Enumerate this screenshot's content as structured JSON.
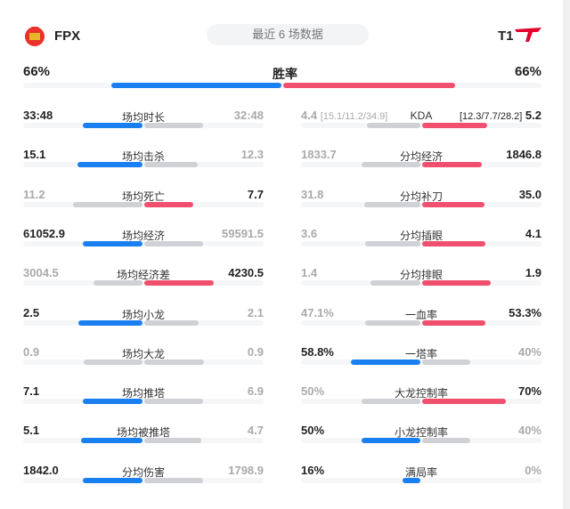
{
  "header": {
    "left_team": "FPX",
    "right_team": "T1",
    "filter": "最近 6 场数据"
  },
  "colors": {
    "left": "#1a7ff0",
    "right": "#f0506e",
    "neutral": "#d0d1d5"
  },
  "winrate": {
    "label": "胜率",
    "left": "66%",
    "right": "66%",
    "left_fraction": 0.5
  },
  "left_stats": [
    {
      "label": "场均时长",
      "left": "33:48",
      "right": "32:48",
      "lead": "left",
      "lv": 33.8,
      "rv": 32.8
    },
    {
      "label": "场均击杀",
      "left": "15.1",
      "right": "12.3",
      "lead": "left",
      "lv": 15.1,
      "rv": 12.3
    },
    {
      "label": "场均死亡",
      "left": "11.2",
      "right": "7.7",
      "lead": "right",
      "lv": 11.2,
      "rv": 7.7
    },
    {
      "label": "场均经济",
      "left": "61052.9",
      "right": "59591.5",
      "lead": "left",
      "lv": 61052.9,
      "rv": 59591.5
    },
    {
      "label": "场均经济差",
      "left": "3004.5",
      "right": "4230.5",
      "lead": "right",
      "lv": 3004.5,
      "rv": 4230.5
    },
    {
      "label": "场均小龙",
      "left": "2.5",
      "right": "2.1",
      "lead": "left",
      "lv": 2.5,
      "rv": 2.1
    },
    {
      "label": "场均大龙",
      "left": "0.9",
      "right": "0.9",
      "lead": "none",
      "lv": 0.9,
      "rv": 0.9
    },
    {
      "label": "场均推塔",
      "left": "7.1",
      "right": "6.9",
      "lead": "left",
      "lv": 7.1,
      "rv": 6.9
    },
    {
      "label": "场均被推塔",
      "left": "5.1",
      "right": "4.7",
      "lead": "left",
      "lv": 5.1,
      "rv": 4.7
    },
    {
      "label": "分均伤害",
      "left": "1842.0",
      "right": "1798.9",
      "lead": "left",
      "lv": 1842.0,
      "rv": 1798.9
    }
  ],
  "right_stats": [
    {
      "label": "KDA",
      "left": "4.4",
      "left_sub": "[15.1/11.2/34.9]",
      "right": "5.2",
      "right_sub": "[12.3/7.7/28.2]",
      "lead": "right",
      "lv": 4.4,
      "rv": 5.2
    },
    {
      "label": "分均经济",
      "left": "1833.7",
      "right": "1846.8",
      "lead": "right",
      "lv": 1833.7,
      "rv": 1846.8
    },
    {
      "label": "分均补刀",
      "left": "31.8",
      "right": "35.0",
      "lead": "right",
      "lv": 31.8,
      "rv": 35.0
    },
    {
      "label": "分均插眼",
      "left": "3.6",
      "right": "4.1",
      "lead": "right",
      "lv": 3.6,
      "rv": 4.1
    },
    {
      "label": "分均排眼",
      "left": "1.4",
      "right": "1.9",
      "lead": "right",
      "lv": 1.4,
      "rv": 1.9
    },
    {
      "label": "一血率",
      "left": "47.1%",
      "right": "53.3%",
      "lead": "right",
      "lv": 47.1,
      "rv": 53.3,
      "pct": true
    },
    {
      "label": "一塔率",
      "left": "58.8%",
      "right": "40%",
      "lead": "left",
      "lv": 58.8,
      "rv": 40,
      "pct": true
    },
    {
      "label": "大龙控制率",
      "left": "50%",
      "right": "70%",
      "lead": "right",
      "lv": 50,
      "rv": 70,
      "pct": true
    },
    {
      "label": "小龙控制率",
      "left": "50%",
      "right": "40%",
      "lead": "left",
      "lv": 50,
      "rv": 40,
      "pct": true
    },
    {
      "label": "满局率",
      "left": "16%",
      "right": "0%",
      "lead": "left",
      "lv": 16,
      "rv": 0,
      "pct": true
    }
  ]
}
